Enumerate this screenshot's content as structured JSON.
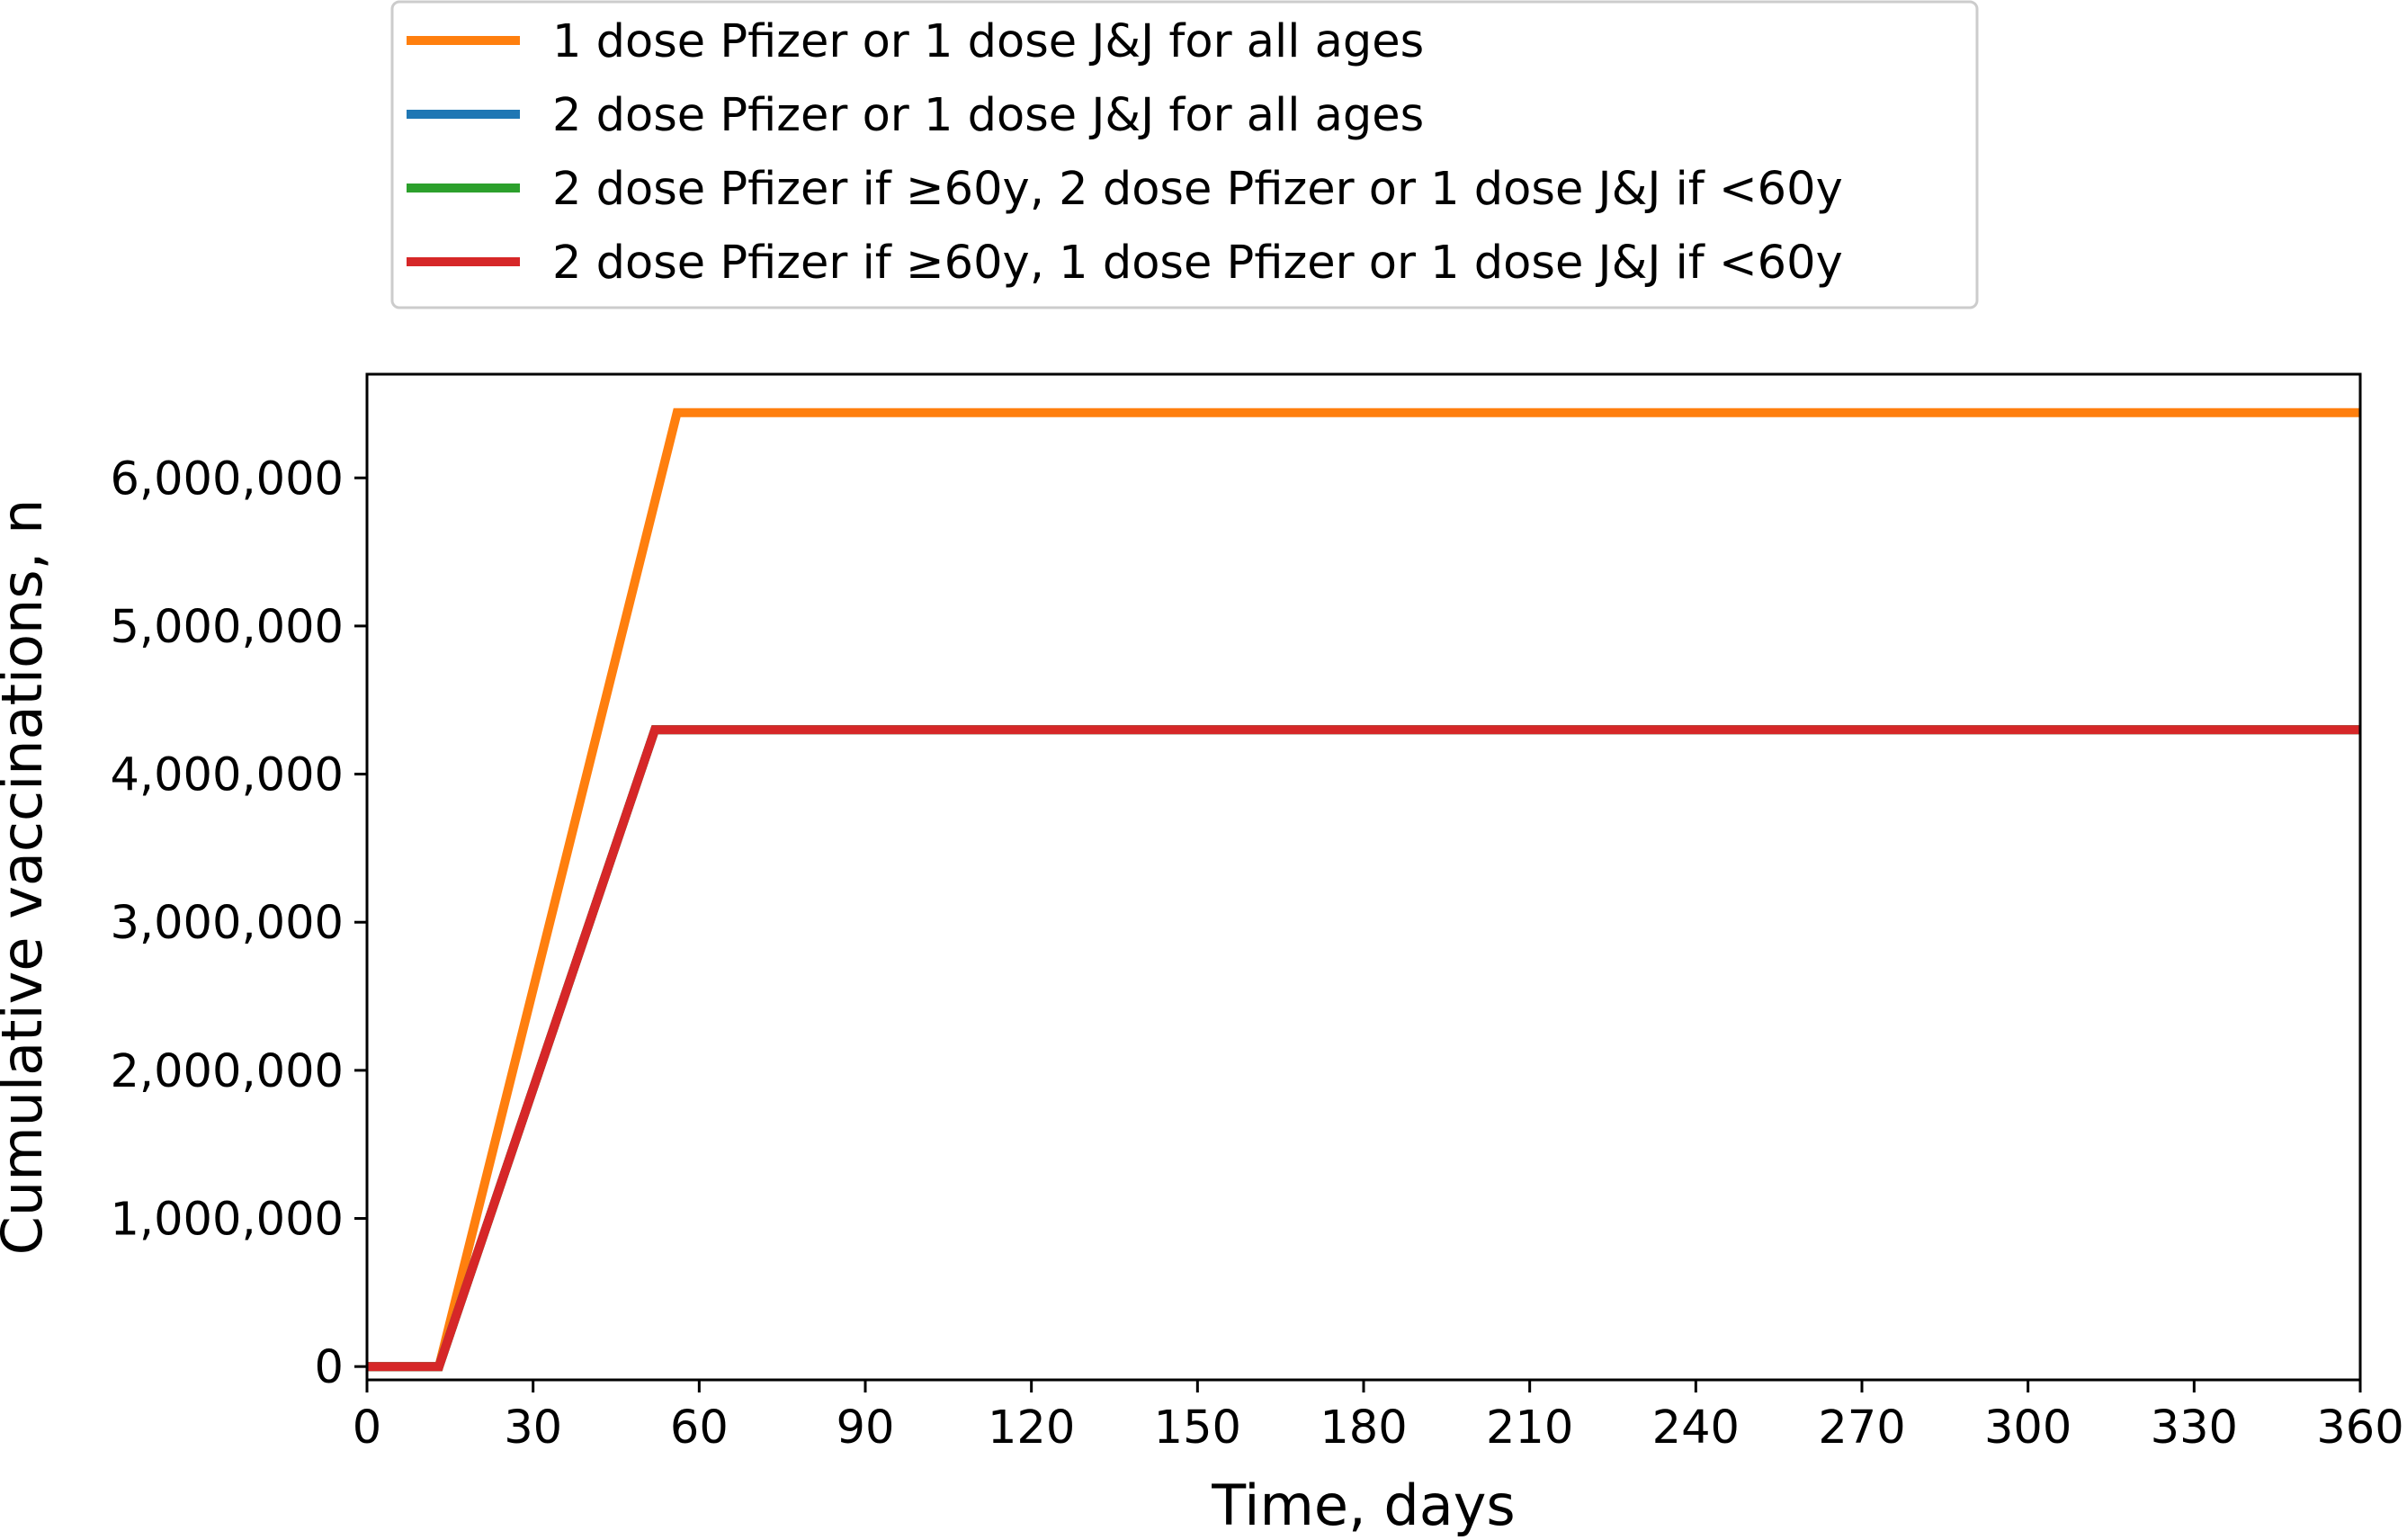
{
  "chart_data": {
    "type": "line",
    "xlabel": "Time, days",
    "ylabel": "Cumulative vaccinations, n",
    "xlim": [
      0,
      360
    ],
    "ylim": [
      -90000,
      6700000
    ],
    "x_ticks": [
      0,
      30,
      60,
      90,
      120,
      150,
      180,
      210,
      240,
      270,
      300,
      330,
      360
    ],
    "y_ticks": [
      0,
      1000000,
      2000000,
      3000000,
      4000000,
      5000000,
      6000000
    ],
    "y_tick_labels": [
      "0",
      "1,000,000",
      "2,000,000",
      "3,000,000",
      "4,000,000",
      "5,000,000",
      "6,000,000"
    ],
    "grid": false,
    "legend_position": "top-center, outside plot",
    "series": [
      {
        "name": "1 dose Pfizer or 1 dose J&J for all ages",
        "color": "#ff7f0e",
        "x": [
          0,
          13,
          56,
          360
        ],
        "y": [
          0,
          0,
          6440000,
          6440000
        ]
      },
      {
        "name": "2 dose Pfizer or 1 dose J&J for all ages",
        "color": "#1f77b4",
        "x": [
          0,
          13,
          52,
          360
        ],
        "y": [
          0,
          0,
          4300000,
          4300000
        ]
      },
      {
        "name": "2 dose Pfizer if ≥60y, 2 dose Pfizer or 1 dose J&J if <60y",
        "color": "#2ca02c",
        "x": [
          0,
          13,
          52,
          360
        ],
        "y": [
          0,
          0,
          4300000,
          4300000
        ]
      },
      {
        "name": "2 dose Pfizer if ≥60y, 1 dose Pfizer or 1 dose J&J if <60y",
        "color": "#d62728",
        "x": [
          0,
          13,
          52,
          360
        ],
        "y": [
          0,
          0,
          4300000,
          4300000
        ]
      }
    ]
  }
}
